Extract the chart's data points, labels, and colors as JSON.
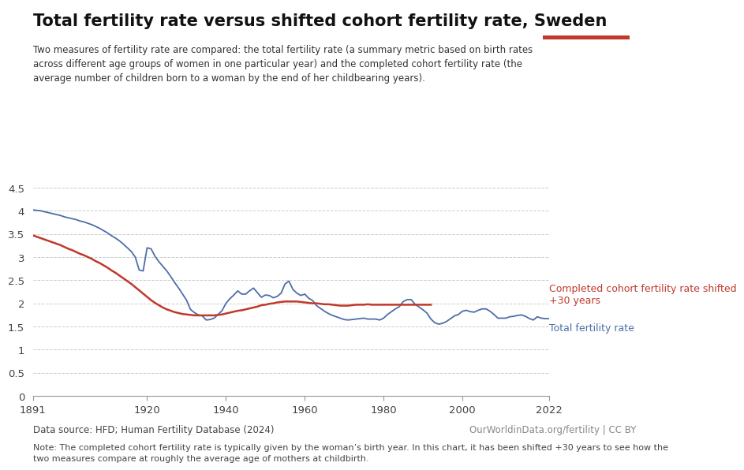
{
  "title": "Total fertility rate versus shifted cohort fertility rate, Sweden",
  "subtitle": "Two measures of fertility rate are compared: the total fertility rate (a summary metric based on birth rates\nacross different age groups of women in one particular year) and the completed cohort fertility rate (the\naverage number of children born to a woman by the end of her childbearing years).",
  "data_source": "Data source: HFD; Human Fertility Database (2024)",
  "url_credit": "OurWorldinData.org/fertility | CC BY",
  "note": "Note: The completed cohort fertility rate is typically given by the woman’s birth year. In this chart, it has been shifted +30 years to see how the\ntwo measures compare at roughly the average age of mothers at childbirth.",
  "owid_logo_bg": "#1a3a5c",
  "owid_logo_red": "#c0392b",
  "tfr_color": "#4c6ea8",
  "ccfr_color": "#c0392b",
  "tfr_label": "Total fertility rate",
  "ccfr_label": "Completed cohort fertility rate shifted\n+30 years",
  "ylim": [
    0,
    4.5
  ],
  "yticks": [
    0,
    0.5,
    1,
    1.5,
    2,
    2.5,
    3,
    3.5,
    4,
    4.5
  ],
  "xticks": [
    1891,
    1920,
    1940,
    1960,
    1980,
    2000,
    2022
  ],
  "xlim": [
    1891,
    2022
  ],
  "tfr_years": [
    1891,
    1892,
    1893,
    1894,
    1895,
    1896,
    1897,
    1898,
    1899,
    1900,
    1901,
    1902,
    1903,
    1904,
    1905,
    1906,
    1907,
    1908,
    1909,
    1910,
    1911,
    1912,
    1913,
    1914,
    1915,
    1916,
    1917,
    1918,
    1919,
    1920,
    1921,
    1922,
    1923,
    1924,
    1925,
    1926,
    1927,
    1928,
    1929,
    1930,
    1931,
    1932,
    1933,
    1934,
    1935,
    1936,
    1937,
    1938,
    1939,
    1940,
    1941,
    1942,
    1943,
    1944,
    1945,
    1946,
    1947,
    1948,
    1949,
    1950,
    1951,
    1952,
    1953,
    1954,
    1955,
    1956,
    1957,
    1958,
    1959,
    1960,
    1961,
    1962,
    1963,
    1964,
    1965,
    1966,
    1967,
    1968,
    1969,
    1970,
    1971,
    1972,
    1973,
    1974,
    1975,
    1976,
    1977,
    1978,
    1979,
    1980,
    1981,
    1982,
    1983,
    1984,
    1985,
    1986,
    1987,
    1988,
    1989,
    1990,
    1991,
    1992,
    1993,
    1994,
    1995,
    1996,
    1997,
    1998,
    1999,
    2000,
    2001,
    2002,
    2003,
    2004,
    2005,
    2006,
    2007,
    2008,
    2009,
    2010,
    2011,
    2012,
    2013,
    2014,
    2015,
    2016,
    2017,
    2018,
    2019,
    2020,
    2021,
    2022
  ],
  "tfr_values": [
    4.02,
    4.01,
    4.0,
    3.98,
    3.96,
    3.94,
    3.92,
    3.9,
    3.87,
    3.85,
    3.83,
    3.81,
    3.78,
    3.76,
    3.73,
    3.7,
    3.66,
    3.62,
    3.57,
    3.52,
    3.46,
    3.41,
    3.35,
    3.28,
    3.2,
    3.12,
    3.0,
    2.72,
    2.7,
    3.2,
    3.18,
    3.02,
    2.9,
    2.8,
    2.7,
    2.58,
    2.45,
    2.33,
    2.2,
    2.07,
    1.87,
    1.8,
    1.75,
    1.73,
    1.64,
    1.65,
    1.68,
    1.76,
    1.84,
    2.0,
    2.1,
    2.18,
    2.27,
    2.2,
    2.2,
    2.27,
    2.33,
    2.23,
    2.13,
    2.18,
    2.17,
    2.12,
    2.15,
    2.22,
    2.42,
    2.48,
    2.3,
    2.22,
    2.17,
    2.2,
    2.11,
    2.06,
    1.95,
    1.89,
    1.83,
    1.78,
    1.74,
    1.71,
    1.68,
    1.65,
    1.64,
    1.65,
    1.66,
    1.67,
    1.68,
    1.66,
    1.66,
    1.66,
    1.64,
    1.68,
    1.76,
    1.82,
    1.88,
    1.93,
    2.04,
    2.08,
    2.08,
    1.98,
    1.92,
    1.86,
    1.79,
    1.66,
    1.58,
    1.55,
    1.57,
    1.61,
    1.67,
    1.73,
    1.76,
    1.83,
    1.85,
    1.82,
    1.81,
    1.85,
    1.88,
    1.88,
    1.83,
    1.76,
    1.68,
    1.68,
    1.68,
    1.71,
    1.72,
    1.74,
    1.75,
    1.72,
    1.67,
    1.64,
    1.71,
    1.68,
    1.67,
    1.67
  ],
  "ccfr_years": [
    1891,
    1892,
    1893,
    1894,
    1895,
    1896,
    1897,
    1898,
    1899,
    1900,
    1901,
    1902,
    1903,
    1904,
    1905,
    1906,
    1907,
    1908,
    1909,
    1910,
    1911,
    1912,
    1913,
    1914,
    1915,
    1916,
    1917,
    1918,
    1919,
    1920,
    1921,
    1922,
    1923,
    1924,
    1925,
    1926,
    1927,
    1928,
    1929,
    1930,
    1931,
    1932,
    1933,
    1934,
    1935,
    1936,
    1937,
    1938,
    1939,
    1940,
    1941,
    1942,
    1943,
    1944,
    1945,
    1946,
    1947,
    1948,
    1949,
    1950,
    1951,
    1952,
    1953,
    1954,
    1955,
    1956,
    1957,
    1958,
    1959,
    1960,
    1961,
    1962,
    1963,
    1964,
    1965,
    1966,
    1967,
    1968,
    1969,
    1970,
    1971,
    1972,
    1973,
    1974,
    1975,
    1976,
    1977,
    1978,
    1979,
    1980,
    1981,
    1982,
    1983,
    1984,
    1985,
    1986,
    1987,
    1988,
    1989,
    1990,
    1991,
    1992
  ],
  "ccfr_values": [
    3.47,
    3.44,
    3.41,
    3.38,
    3.35,
    3.32,
    3.29,
    3.26,
    3.22,
    3.18,
    3.15,
    3.11,
    3.07,
    3.04,
    3.0,
    2.96,
    2.91,
    2.87,
    2.82,
    2.77,
    2.71,
    2.66,
    2.6,
    2.54,
    2.48,
    2.42,
    2.35,
    2.28,
    2.21,
    2.14,
    2.07,
    2.01,
    1.96,
    1.91,
    1.87,
    1.84,
    1.81,
    1.79,
    1.77,
    1.76,
    1.75,
    1.74,
    1.74,
    1.74,
    1.74,
    1.74,
    1.74,
    1.75,
    1.76,
    1.78,
    1.8,
    1.82,
    1.84,
    1.85,
    1.87,
    1.89,
    1.91,
    1.93,
    1.96,
    1.97,
    1.99,
    2.0,
    2.02,
    2.03,
    2.04,
    2.04,
    2.04,
    2.04,
    2.03,
    2.02,
    2.01,
    2.0,
    2.0,
    1.99,
    1.98,
    1.98,
    1.97,
    1.96,
    1.95,
    1.95,
    1.95,
    1.96,
    1.97,
    1.97,
    1.97,
    1.98,
    1.97,
    1.97,
    1.97,
    1.97,
    1.97,
    1.97,
    1.97,
    1.97,
    1.97,
    1.97,
    1.97,
    1.97,
    1.97,
    1.97,
    1.97,
    1.97
  ]
}
